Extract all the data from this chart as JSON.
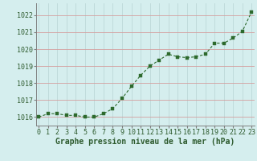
{
  "x": [
    0,
    1,
    2,
    3,
    4,
    5,
    6,
    7,
    8,
    9,
    10,
    11,
    12,
    13,
    14,
    15,
    16,
    17,
    18,
    19,
    20,
    21,
    22,
    23
  ],
  "y": [
    1016.0,
    1016.2,
    1016.2,
    1016.1,
    1016.1,
    1016.0,
    1016.0,
    1016.2,
    1016.5,
    1017.1,
    1017.8,
    1018.45,
    1019.0,
    1019.35,
    1019.7,
    1019.55,
    1019.5,
    1019.55,
    1019.7,
    1020.35,
    1020.35,
    1020.65,
    1021.05,
    1022.2
  ],
  "ylim": [
    1015.5,
    1022.7
  ],
  "xlim": [
    -0.3,
    23.3
  ],
  "yticks": [
    1016,
    1017,
    1018,
    1019,
    1020,
    1021,
    1022
  ],
  "xticks": [
    0,
    1,
    2,
    3,
    4,
    5,
    6,
    7,
    8,
    9,
    10,
    11,
    12,
    13,
    14,
    15,
    16,
    17,
    18,
    19,
    20,
    21,
    22,
    23
  ],
  "xlabel": "Graphe pression niveau de la mer (hPa)",
  "line_color": "#2d6a2d",
  "marker": "s",
  "marker_size": 2.5,
  "line_width": 0.8,
  "bg_color": "#d5eeee",
  "grid_color_h": "#d4a0a0",
  "grid_color_v": "#b8d4d4",
  "axis_color": "#808080",
  "label_color": "#2d5a2d",
  "tick_label_color": "#2d5a2d",
  "xlabel_fontsize": 7.0,
  "tick_fontsize": 6.0,
  "figsize": [
    3.2,
    2.0
  ],
  "dpi": 100
}
